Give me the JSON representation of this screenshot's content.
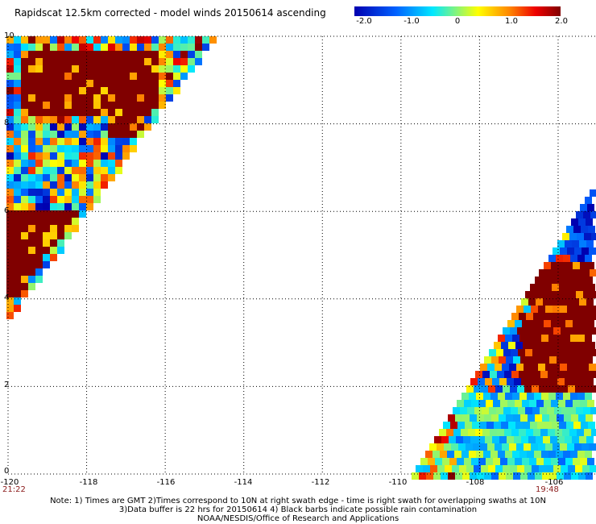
{
  "title": "Rapidscat 12.5km corrected - model winds 20150614 ascending",
  "colorbar": {
    "labels": [
      "-2.0",
      "-1.0",
      "0",
      "1.0",
      "2.0"
    ],
    "values": [
      -2.0,
      -1.0,
      0,
      1.0,
      2.0
    ],
    "stops": [
      "#0000b0",
      "#0060ff",
      "#00e8ff",
      "#ffff00",
      "#ff8800",
      "#ee0000",
      "#800000"
    ]
  },
  "axes": {
    "lat_labels": [
      "10",
      "8",
      "6",
      "4",
      "2",
      "0"
    ],
    "lat_values": [
      10,
      8,
      6,
      4,
      2,
      0
    ],
    "lon_labels": [
      "-120",
      "-118",
      "-116",
      "-114",
      "-112",
      "-110",
      "-108",
      "-106"
    ],
    "lon_values": [
      -120,
      -118,
      -116,
      -114,
      -112,
      -110,
      -108,
      -106
    ],
    "lon_range": [
      -120,
      -105.2
    ],
    "lat_range": [
      0,
      10
    ],
    "grid": "dotted"
  },
  "swath_times": {
    "left": "21:22",
    "right": "19:48"
  },
  "notes": {
    "line1": "Note: 1) Times are GMT 2)Times correspond to 10N at right swath edge - time is right swath for overlapping swaths at 10N",
    "line2": "3)Data buffer is 22 hrs for 20150614 4) Black barbs indicate possible rain contamination",
    "line3": "NOAA/NESDIS/Office of Research and Applications"
  }
}
